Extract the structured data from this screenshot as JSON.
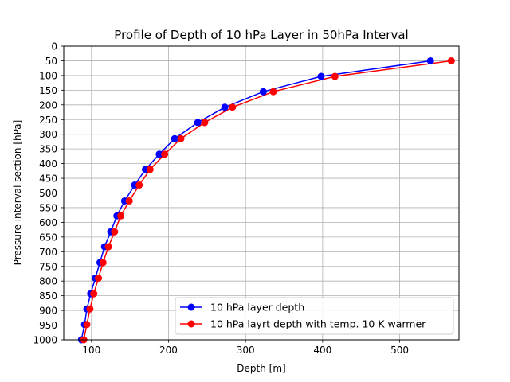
{
  "chart_data": {
    "type": "line",
    "title": "Profile of Depth of 10 hPa Layer in 50hPa Interval",
    "xlabel": "Depth [m]",
    "ylabel": "Pressure interval section [hPa]",
    "xlim": [
      64,
      577
    ],
    "ylim": [
      1000,
      0
    ],
    "y_inverted": true,
    "grid": true,
    "legend_position": "lower-right",
    "x_ticks": [
      100,
      200,
      300,
      400,
      500
    ],
    "y_ticks": [
      0,
      50,
      100,
      150,
      200,
      250,
      300,
      350,
      400,
      450,
      500,
      550,
      600,
      650,
      700,
      750,
      800,
      850,
      900,
      950,
      1000
    ],
    "series": [
      {
        "name": "10 hPa layer depth",
        "color": "#0000ff",
        "marker": "circle",
        "points": [
          {
            "x": 540,
            "y": 50
          },
          {
            "x": 398,
            "y": 103
          },
          {
            "x": 323,
            "y": 155
          },
          {
            "x": 273,
            "y": 208
          },
          {
            "x": 238,
            "y": 260
          },
          {
            "x": 208,
            "y": 315
          },
          {
            "x": 188,
            "y": 368
          },
          {
            "x": 170,
            "y": 420
          },
          {
            "x": 156,
            "y": 473
          },
          {
            "x": 143,
            "y": 527
          },
          {
            "x": 133,
            "y": 578
          },
          {
            "x": 125,
            "y": 632
          },
          {
            "x": 117,
            "y": 683
          },
          {
            "x": 111,
            "y": 737
          },
          {
            "x": 105,
            "y": 790
          },
          {
            "x": 99,
            "y": 843
          },
          {
            "x": 94,
            "y": 895
          },
          {
            "x": 91,
            "y": 948
          },
          {
            "x": 87,
            "y": 1000
          }
        ]
      },
      {
        "name": "10 hPa layrt depth with temp. 10 K warmer",
        "color": "#ff0000",
        "marker": "circle",
        "points": [
          {
            "x": 567,
            "y": 50
          },
          {
            "x": 416,
            "y": 103
          },
          {
            "x": 336,
            "y": 155
          },
          {
            "x": 283,
            "y": 208
          },
          {
            "x": 247,
            "y": 260
          },
          {
            "x": 216,
            "y": 315
          },
          {
            "x": 195,
            "y": 368
          },
          {
            "x": 176,
            "y": 420
          },
          {
            "x": 162,
            "y": 473
          },
          {
            "x": 149,
            "y": 527
          },
          {
            "x": 138,
            "y": 578
          },
          {
            "x": 130,
            "y": 632
          },
          {
            "x": 122,
            "y": 683
          },
          {
            "x": 115,
            "y": 737
          },
          {
            "x": 109,
            "y": 790
          },
          {
            "x": 103,
            "y": 843
          },
          {
            "x": 98,
            "y": 895
          },
          {
            "x": 94,
            "y": 948
          },
          {
            "x": 90,
            "y": 1000
          }
        ]
      }
    ]
  }
}
